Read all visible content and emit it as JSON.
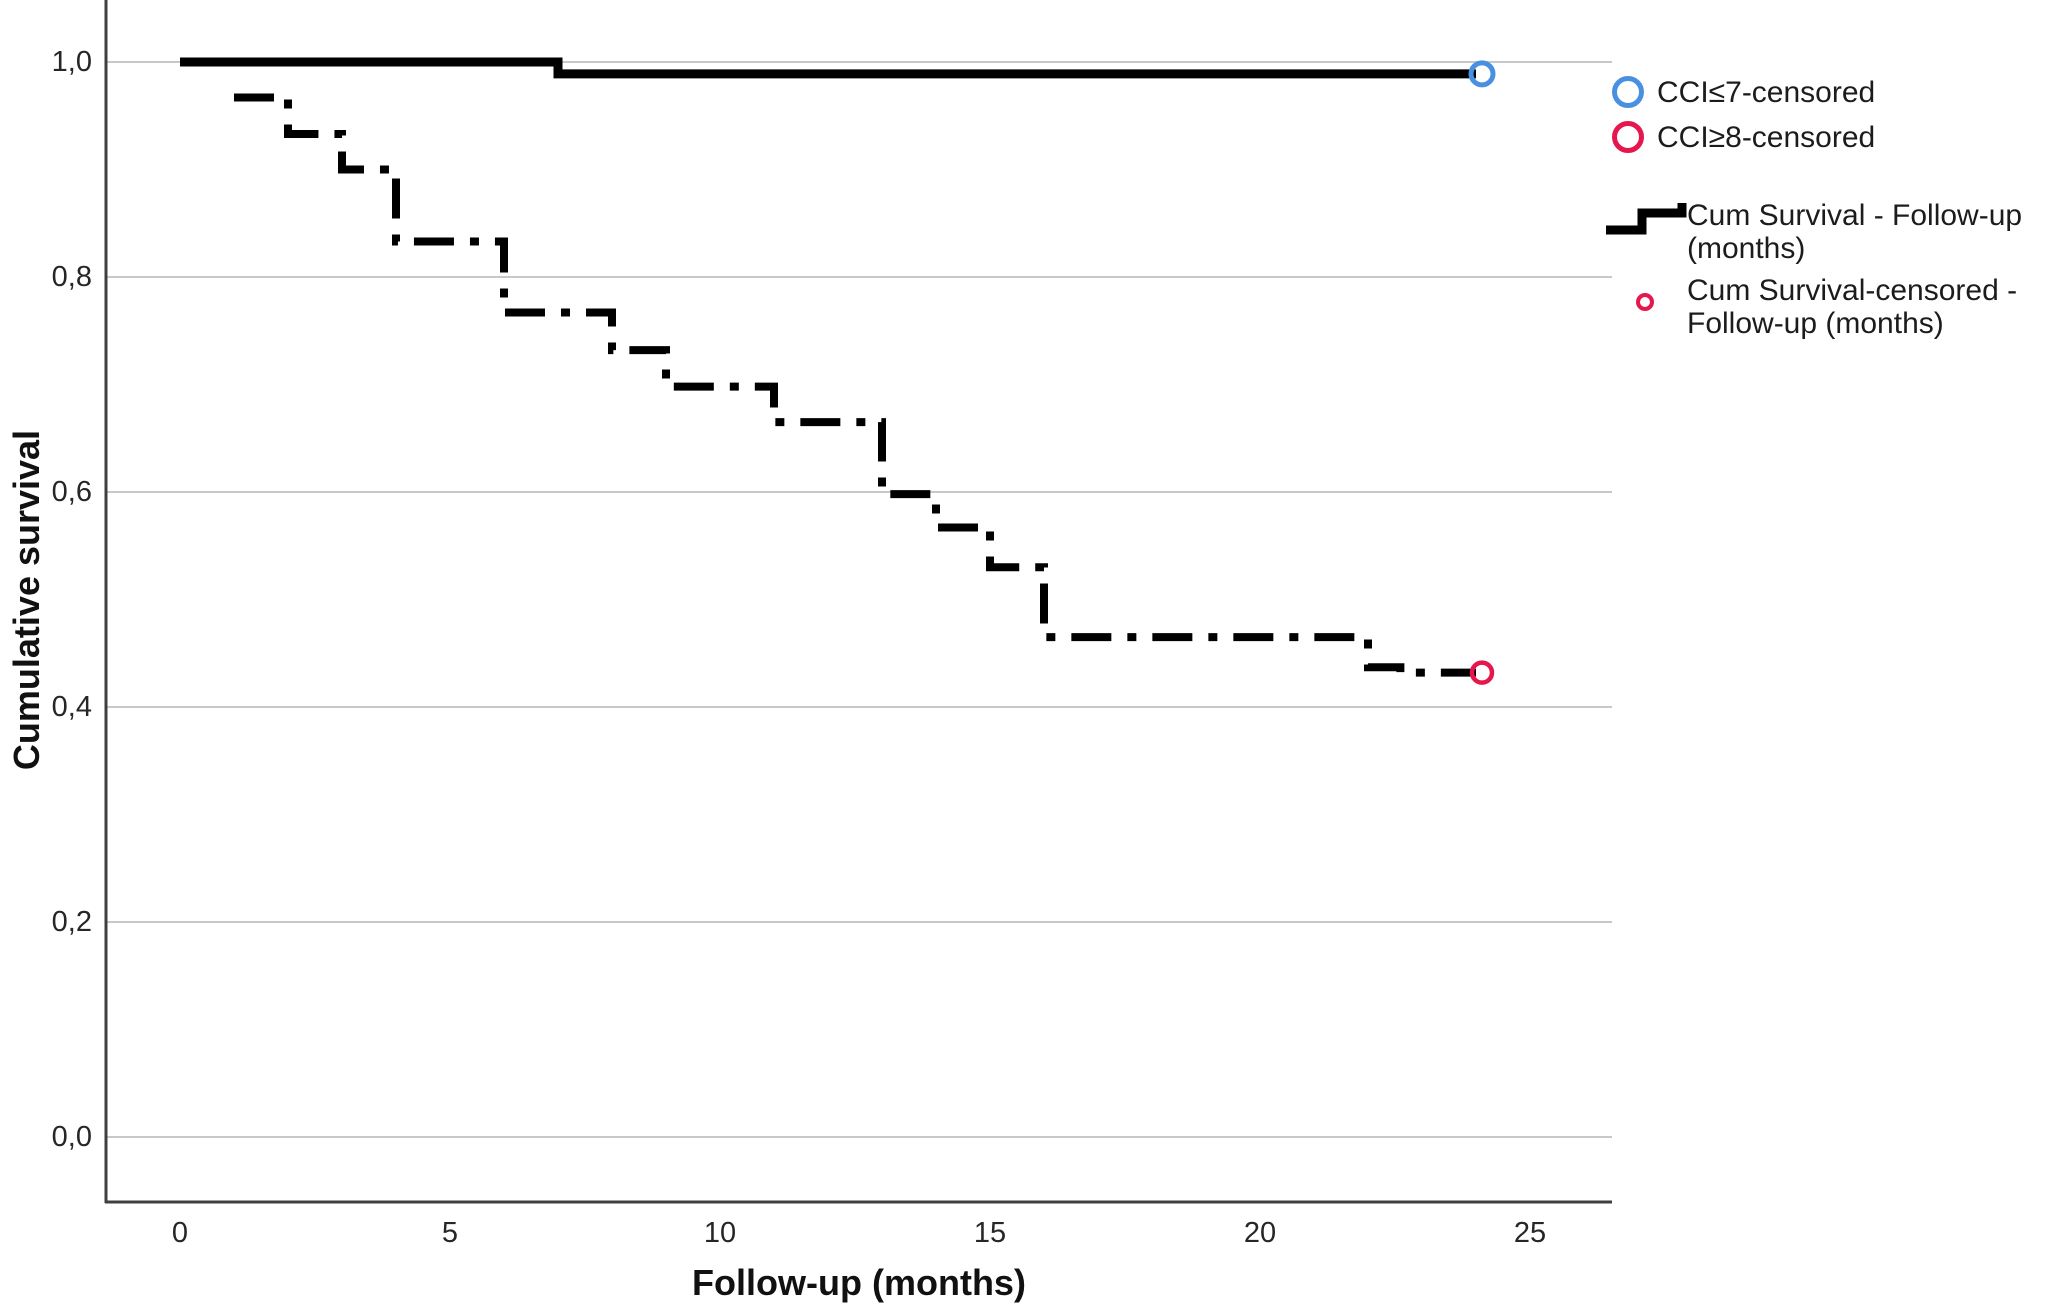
{
  "figure": {
    "x_axis": {
      "title": "Follow-up (months)",
      "ticks": [
        "0",
        "5",
        "10",
        "15",
        "20",
        "25"
      ]
    },
    "y_axis": {
      "title": "Cumulative survival",
      "ticks": [
        "1,0",
        "0,8",
        "0,6",
        "0,4",
        "0,2",
        "0,0"
      ]
    },
    "legend": {
      "items": [
        {
          "label": "CCI≤7-censored",
          "marker": "large-circle-outline",
          "color": "#4a90e2"
        },
        {
          "label": "CCI≥8-censored",
          "marker": "large-circle-outline",
          "color": "#e5174d"
        },
        {
          "label": "Cum Survival - Follow-up (months)",
          "marker": "step-line",
          "color": "#000000"
        },
        {
          "label": "Cum Survival-censored - Follow-up (months)",
          "marker": "small-circle-outline",
          "color": "#e5174d"
        }
      ]
    },
    "colors": {
      "grid": "#c8c8c8",
      "axis": "#3f3f3f",
      "curve": "#000000",
      "censored_low_cci": "#4a90e2",
      "censored_high_cci": "#e5174d"
    }
  },
  "chart_data": {
    "type": "line",
    "subtype": "kaplan-meier-step",
    "xlabel": "Follow-up (months)",
    "ylabel": "Cumulative survival",
    "xlim": [
      -1.4,
      26.5
    ],
    "ylim": [
      -0.06,
      1.06
    ],
    "x_ticks": [
      0,
      5,
      10,
      15,
      20,
      25
    ],
    "y_ticks": [
      1.0,
      0.8,
      0.6,
      0.4,
      0.2,
      0.0
    ],
    "grid": "horizontal-only",
    "legend_position": "right",
    "series": [
      {
        "name": "CCI≤7",
        "style": "solid",
        "color": "#000000",
        "steps": [
          [
            0,
            1.0
          ],
          [
            7,
            1.0
          ],
          [
            7,
            0.989
          ],
          [
            24,
            0.989
          ]
        ],
        "censored": [
          {
            "x": 24,
            "y": 0.989,
            "marker_color": "#4a90e2"
          }
        ]
      },
      {
        "name": "CCI≥8",
        "style": "dash-dot",
        "color": "#000000",
        "steps": [
          [
            1,
            0.967
          ],
          [
            2,
            0.933
          ],
          [
            3,
            0.9
          ],
          [
            4,
            0.833
          ],
          [
            6,
            0.767
          ],
          [
            8,
            0.732
          ],
          [
            9,
            0.698
          ],
          [
            11,
            0.665
          ],
          [
            13,
            0.598
          ],
          [
            14,
            0.567
          ],
          [
            15,
            0.53
          ],
          [
            16,
            0.465
          ],
          [
            22,
            0.437
          ],
          [
            22.6,
            0.432
          ],
          [
            24,
            0.432
          ]
        ],
        "censored": [
          {
            "x": 24,
            "y": 0.432,
            "marker_color": "#e5174d"
          }
        ]
      }
    ]
  }
}
